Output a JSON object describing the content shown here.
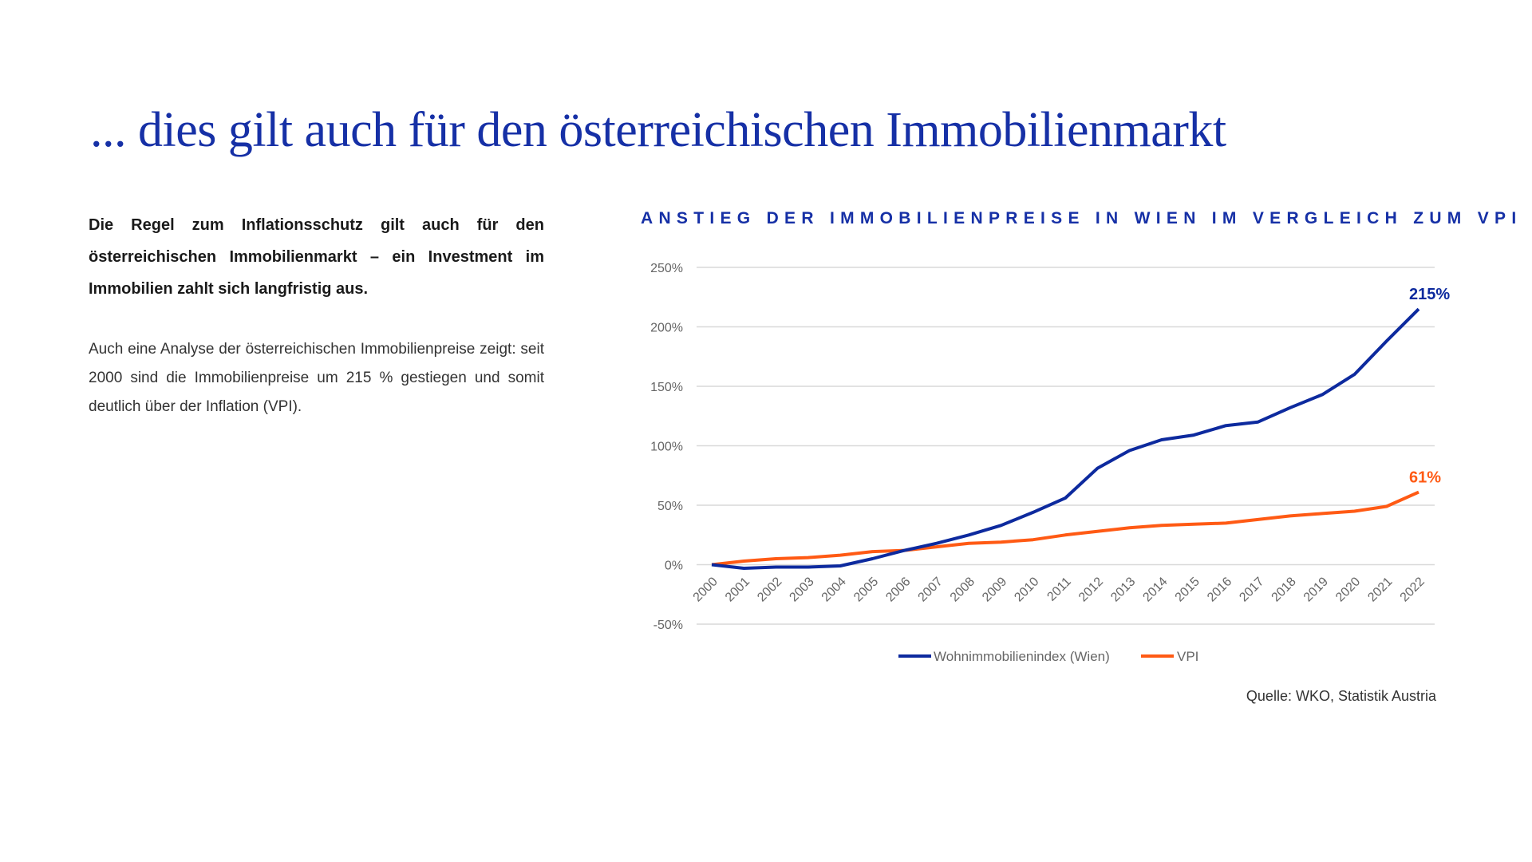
{
  "heading": "... dies gilt auch für den österreichischen Immobilienmarkt",
  "lead_text": "Die Regel zum Inflationsschutz gilt auch für den österreichischen Immobilienmarkt – ein Investment im Immobilien zahlt sich langfristig aus.",
  "body_text": "Auch eine Analyse der österreichischen Immobilienpreise zeigt: seit 2000 sind die Immobilienpreise um 215 % gestiegen und somit deutlich über der Inflation (VPI).",
  "source": "Quelle: WKO, Statistik Austria",
  "colors": {
    "blue": "#0d2a9e",
    "orange": "#ff5a14",
    "title": "#1630a6"
  },
  "chart_data": {
    "type": "line",
    "title": "ANSTIEG DER IMMOBILIENPREISE IN WIEN IM VERGLEICH ZUM VPI",
    "xlabel": "",
    "ylabel": "",
    "x": [
      "2000",
      "2001",
      "2002",
      "2003",
      "2004",
      "2005",
      "2006",
      "2007",
      "2008",
      "2009",
      "2010",
      "2011",
      "2012",
      "2013",
      "2014",
      "2015",
      "2016",
      "2017",
      "2018",
      "2019",
      "2020",
      "2021",
      "2022"
    ],
    "ylim": [
      -50,
      250
    ],
    "yticks": [
      250,
      200,
      150,
      100,
      50,
      0,
      -50
    ],
    "ytick_labels": [
      "250%",
      "200%",
      "150%",
      "100%",
      "50%",
      "0%",
      "-50%"
    ],
    "grid": true,
    "legend": "bottom",
    "series": [
      {
        "name": "Wohnimmobilienindex (Wien)",
        "color": "#0d2a9e",
        "end_label": "215%",
        "values": [
          0,
          -3,
          -2,
          -2,
          -1,
          5,
          12,
          18,
          25,
          33,
          44,
          56,
          81,
          96,
          105,
          109,
          117,
          120,
          132,
          143,
          160,
          188,
          215
        ]
      },
      {
        "name": "VPI",
        "color": "#ff5a14",
        "end_label": "61%",
        "values": [
          0,
          3,
          5,
          6,
          8,
          11,
          12,
          15,
          18,
          19,
          21,
          25,
          28,
          31,
          33,
          34,
          35,
          38,
          41,
          43,
          45,
          49,
          61
        ]
      }
    ]
  }
}
